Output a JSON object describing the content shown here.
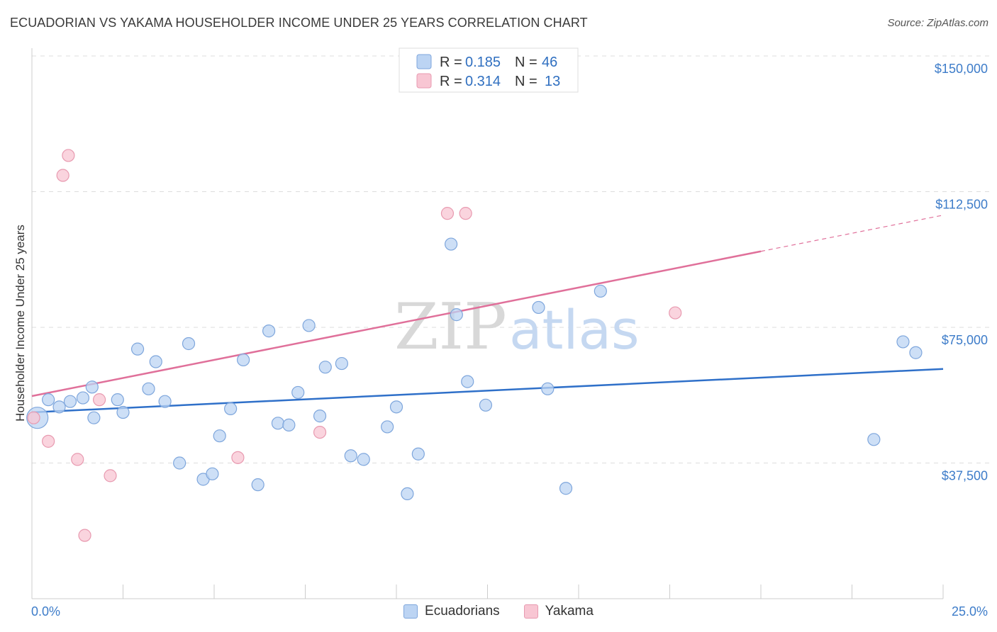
{
  "header": {
    "title": "ECUADORIAN VS YAKAMA HOUSEHOLDER INCOME UNDER 25 YEARS CORRELATION CHART",
    "source": "Source: ZipAtlas.com"
  },
  "watermark": {
    "zip": "ZIP",
    "atlas": "atlas"
  },
  "legend": {
    "rows": [
      {
        "r_label": "R =",
        "r_value": "0.185",
        "n_label": "N =",
        "n_value": "46"
      },
      {
        "r_label": "R =",
        "r_value": "0.314",
        "n_label": "N =",
        "n_value": "13"
      }
    ],
    "bottom": [
      "Ecuadorians",
      "Yakama"
    ]
  },
  "colors": {
    "blue_fill": "#bcd4f3",
    "blue_stroke": "#7ea6dc",
    "blue_line": "#2f70c9",
    "pink_fill": "#f8c6d3",
    "pink_stroke": "#e89ab0",
    "pink_line": "#e0709a",
    "grid": "#dddddd",
    "tick_text": "#3d7cc9"
  },
  "chart_data": {
    "type": "scatter",
    "title": "ECUADORIAN VS YAKAMA HOUSEHOLDER INCOME UNDER 25 YEARS CORRELATION CHART",
    "xlabel": "",
    "ylabel": "Householder Income Under 25 years",
    "xlim": [
      0,
      25
    ],
    "ylim": [
      0,
      150000
    ],
    "x_tick_labels": [
      "0.0%",
      "25.0%"
    ],
    "y_ticks": [
      37500,
      75000,
      112500,
      150000
    ],
    "y_tick_labels": [
      "$37,500",
      "$75,000",
      "$112,500",
      "$150,000"
    ],
    "grid": true,
    "series": [
      {
        "name": "Ecuadorians",
        "r": 0.185,
        "n": 46,
        "trend": {
          "x": [
            0,
            25
          ],
          "y": [
            51500,
            63500
          ]
        },
        "points": [
          {
            "x": 0.15,
            "y": 50000,
            "big": true
          },
          {
            "x": 0.45,
            "y": 55000
          },
          {
            "x": 0.75,
            "y": 53000
          },
          {
            "x": 1.05,
            "y": 54500
          },
          {
            "x": 1.4,
            "y": 55500
          },
          {
            "x": 1.65,
            "y": 58500
          },
          {
            "x": 1.7,
            "y": 50000
          },
          {
            "x": 2.35,
            "y": 55000
          },
          {
            "x": 2.5,
            "y": 51500
          },
          {
            "x": 2.9,
            "y": 69000
          },
          {
            "x": 3.2,
            "y": 58000
          },
          {
            "x": 3.4,
            "y": 65500
          },
          {
            "x": 3.65,
            "y": 54500
          },
          {
            "x": 4.05,
            "y": 37500
          },
          {
            "x": 4.3,
            "y": 70500
          },
          {
            "x": 4.7,
            "y": 33000
          },
          {
            "x": 4.95,
            "y": 34500
          },
          {
            "x": 5.15,
            "y": 45000
          },
          {
            "x": 5.45,
            "y": 52500
          },
          {
            "x": 5.8,
            "y": 66000
          },
          {
            "x": 6.2,
            "y": 31500
          },
          {
            "x": 6.5,
            "y": 74000
          },
          {
            "x": 6.75,
            "y": 48500
          },
          {
            "x": 7.05,
            "y": 48000
          },
          {
            "x": 7.3,
            "y": 57000
          },
          {
            "x": 7.6,
            "y": 75500
          },
          {
            "x": 7.9,
            "y": 50500
          },
          {
            "x": 8.05,
            "y": 64000
          },
          {
            "x": 8.5,
            "y": 65000
          },
          {
            "x": 8.75,
            "y": 39500
          },
          {
            "x": 9.1,
            "y": 38500
          },
          {
            "x": 9.75,
            "y": 47500
          },
          {
            "x": 10.0,
            "y": 53000
          },
          {
            "x": 10.3,
            "y": 29000
          },
          {
            "x": 10.6,
            "y": 40000
          },
          {
            "x": 11.5,
            "y": 98000
          },
          {
            "x": 11.65,
            "y": 78500
          },
          {
            "x": 11.95,
            "y": 60000
          },
          {
            "x": 12.45,
            "y": 53500
          },
          {
            "x": 13.9,
            "y": 80500
          },
          {
            "x": 14.15,
            "y": 58000
          },
          {
            "x": 14.65,
            "y": 30500
          },
          {
            "x": 15.6,
            "y": 85000
          },
          {
            "x": 23.1,
            "y": 44000
          },
          {
            "x": 23.9,
            "y": 71000
          },
          {
            "x": 24.25,
            "y": 68000
          }
        ]
      },
      {
        "name": "Yakama",
        "r": 0.314,
        "n": 13,
        "trend": {
          "x": [
            0,
            20
          ],
          "y": [
            56000,
            96000
          ],
          "dashed_to": [
            25,
            106000
          ]
        },
        "points": [
          {
            "x": 0.05,
            "y": 50000
          },
          {
            "x": 0.45,
            "y": 43500
          },
          {
            "x": 0.85,
            "y": 117000
          },
          {
            "x": 1.0,
            "y": 122500
          },
          {
            "x": 1.25,
            "y": 38500
          },
          {
            "x": 1.45,
            "y": 17500
          },
          {
            "x": 1.85,
            "y": 55000
          },
          {
            "x": 2.15,
            "y": 34000
          },
          {
            "x": 5.65,
            "y": 39000
          },
          {
            "x": 7.9,
            "y": 46000
          },
          {
            "x": 11.4,
            "y": 106500
          },
          {
            "x": 11.9,
            "y": 106500
          },
          {
            "x": 17.65,
            "y": 79000
          }
        ]
      }
    ]
  }
}
